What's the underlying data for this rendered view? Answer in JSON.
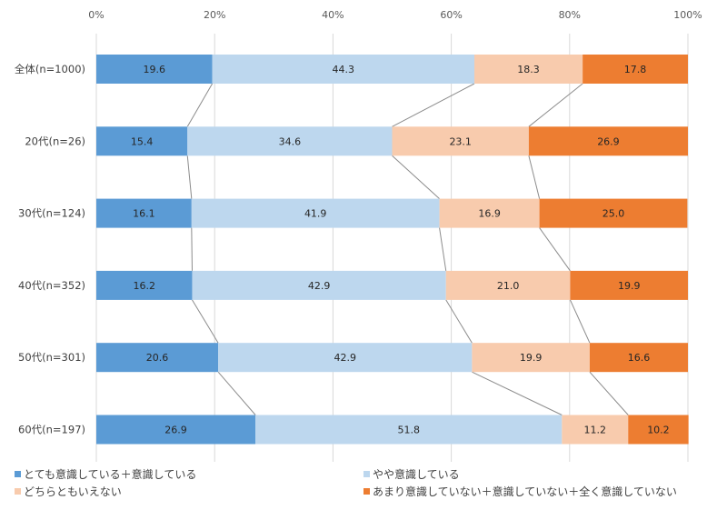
{
  "chart_data": {
    "type": "bar",
    "orientation": "horizontal",
    "stacked": "percent",
    "title": "",
    "xlabel": "",
    "ylabel": "",
    "xlim": [
      0,
      100
    ],
    "x_ticks": [
      "0%",
      "20%",
      "40%",
      "60%",
      "80%",
      "100%"
    ],
    "grid": true,
    "series_lines": true,
    "legend_position": "bottom",
    "categories": [
      "全体(n=1000)",
      "20代(n=26)",
      "30代(n=124)",
      "40代(n=352)",
      "50代(n=301)",
      "60代(n=197)"
    ],
    "series": [
      {
        "name": "とても意識している＋意識している",
        "color": "#5b9bd5",
        "values": [
          19.6,
          15.4,
          16.1,
          16.2,
          20.6,
          26.9
        ]
      },
      {
        "name": "やや意識している",
        "color": "#bdd7ee",
        "values": [
          44.3,
          34.6,
          41.9,
          42.9,
          42.9,
          51.8
        ]
      },
      {
        "name": "どちらともいえない",
        "color": "#f8cbad",
        "values": [
          18.3,
          23.1,
          16.9,
          21.0,
          19.9,
          11.2
        ]
      },
      {
        "name": "あまり意識していない＋意識していない＋全く意識していない",
        "color": "#ed7d31",
        "values": [
          17.8,
          26.9,
          25.0,
          19.9,
          16.6,
          10.2
        ]
      }
    ]
  }
}
